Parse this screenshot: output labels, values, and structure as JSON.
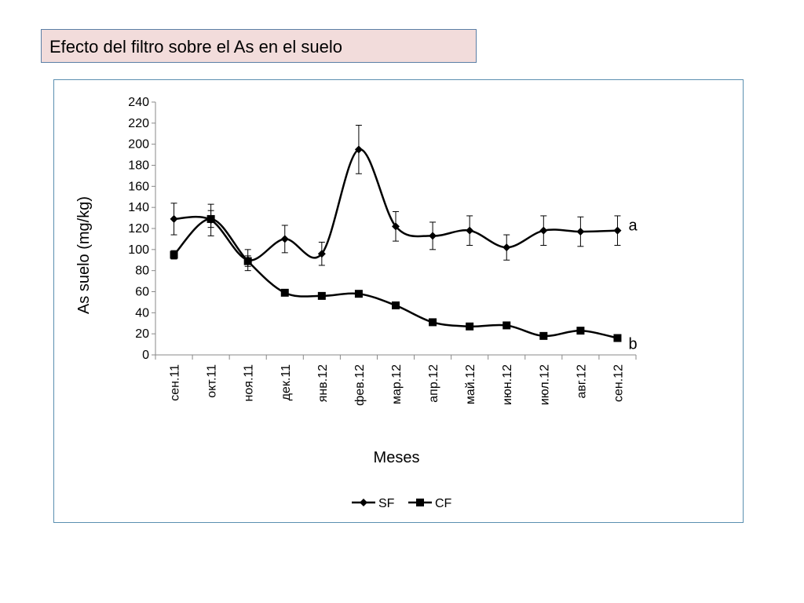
{
  "slide": {
    "title": "Efecto del filtro sobre el As en el suelo"
  },
  "chart_data": {
    "type": "line",
    "title": "",
    "xlabel": "Meses",
    "ylabel": "As  suelo (mg/kg)",
    "ylim": [
      0,
      240
    ],
    "yticks": [
      0,
      20,
      40,
      60,
      80,
      100,
      120,
      140,
      160,
      180,
      200,
      220,
      240
    ],
    "grid": false,
    "legend_position": "bottom",
    "categories": [
      "сен.11",
      "окт.11",
      "ноя.11",
      "дек.11",
      "янв.12",
      "фев.12",
      "мар.12",
      "апр.12",
      "май.12",
      "июн.12",
      "июл.12",
      "авг.12",
      "сен.12"
    ],
    "series": [
      {
        "name": "SF",
        "marker": "diamond",
        "color": "#000000",
        "values": [
          129,
          128,
          90,
          110,
          96,
          195,
          122,
          113,
          118,
          102,
          118,
          117,
          118
        ],
        "error": [
          15,
          15,
          10,
          13,
          11,
          23,
          14,
          13,
          14,
          12,
          14,
          14,
          14
        ],
        "annotation": "a"
      },
      {
        "name": "CF",
        "marker": "square",
        "color": "#000000",
        "values": [
          95,
          129,
          89,
          59,
          56,
          58,
          47,
          31,
          27,
          28,
          18,
          23,
          16
        ],
        "error": [
          4,
          8,
          5,
          0,
          0,
          0,
          0,
          0,
          0,
          0,
          0,
          0,
          0
        ],
        "annotation": "b"
      }
    ]
  }
}
